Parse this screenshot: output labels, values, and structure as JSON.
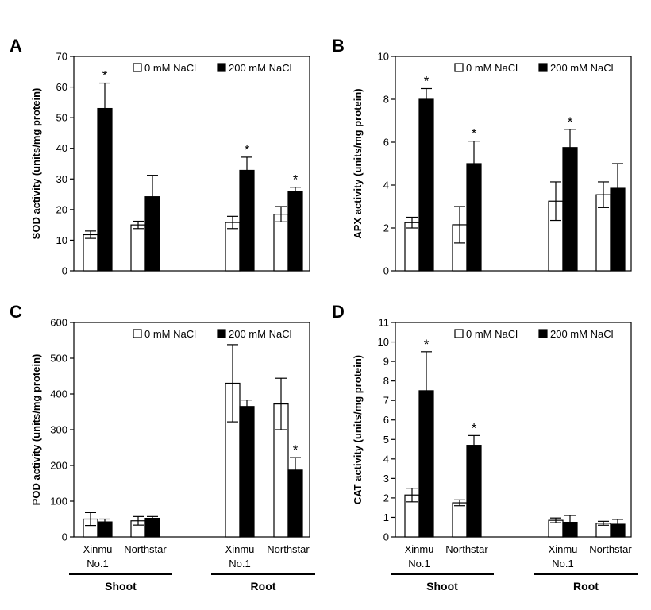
{
  "chart_data": [
    {
      "type": "bar",
      "panel": "A",
      "ylabel": "SOD activity (units/mg protein)",
      "ylim": [
        0,
        70
      ],
      "yticks": [
        "0",
        "10",
        "20",
        "30",
        "40",
        "50",
        "60",
        "70"
      ],
      "categories": [
        "Shoot Xinmu No.1",
        "Shoot Northstar",
        "Root Xinmu No.1",
        "Root Northstar"
      ],
      "series": [
        {
          "name": "0 mM NaCl",
          "color": "#ffffff",
          "values": [
            11.8,
            15.0,
            15.8,
            18.5
          ],
          "errors": [
            1.2,
            1.2,
            2.0,
            2.5
          ]
        },
        {
          "name": "200 mM NaCl",
          "color": "#000000",
          "values": [
            53.0,
            24.2,
            32.8,
            25.8
          ],
          "errors": [
            8.3,
            7.0,
            4.3,
            1.5
          ]
        }
      ],
      "significant": [
        [
          false,
          true
        ],
        [
          false,
          false
        ],
        [
          false,
          true
        ],
        [
          false,
          true
        ]
      ],
      "legend": [
        "0 mM NaCl",
        "200 mM NaCl"
      ],
      "legend_position": "top-right",
      "star": "*"
    },
    {
      "type": "bar",
      "panel": "B",
      "ylabel": "APX activity (units/mg protein)",
      "ylim": [
        0,
        10
      ],
      "yticks": [
        "0",
        "2",
        "4",
        "6",
        "8",
        "10"
      ],
      "categories": [
        "Shoot Xinmu No.1",
        "Shoot Northstar",
        "Root Xinmu No.1",
        "Root Northstar"
      ],
      "series": [
        {
          "name": "0 mM NaCl",
          "color": "#ffffff",
          "values": [
            2.25,
            2.15,
            3.25,
            3.55
          ],
          "errors": [
            0.25,
            0.85,
            0.9,
            0.6
          ]
        },
        {
          "name": "200 mM NaCl",
          "color": "#000000",
          "values": [
            8.0,
            5.0,
            5.75,
            3.85
          ],
          "errors": [
            0.5,
            1.05,
            0.85,
            1.15
          ]
        }
      ],
      "significant": [
        [
          false,
          true
        ],
        [
          false,
          true
        ],
        [
          false,
          true
        ],
        [
          false,
          false
        ]
      ],
      "legend": [
        "0 mM NaCl",
        "200 mM NaCl"
      ],
      "legend_position": "top-right",
      "star": "*"
    },
    {
      "type": "bar",
      "panel": "C",
      "ylabel": "POD activity (units/mg protein)",
      "ylim": [
        0,
        600
      ],
      "yticks": [
        "0",
        "100",
        "200",
        "300",
        "400",
        "500",
        "600"
      ],
      "categories": [
        "Shoot Xinmu No.1",
        "Shoot Northstar",
        "Root Xinmu No.1",
        "Root Northstar"
      ],
      "series": [
        {
          "name": "0 mM NaCl",
          "color": "#ffffff",
          "values": [
            50,
            45,
            430,
            372
          ],
          "errors": [
            18,
            12,
            108,
            72
          ]
        },
        {
          "name": "200 mM NaCl",
          "color": "#000000",
          "values": [
            42,
            52,
            365,
            187
          ],
          "errors": [
            8,
            5,
            18,
            35
          ]
        }
      ],
      "significant": [
        [
          false,
          false
        ],
        [
          false,
          false
        ],
        [
          false,
          false
        ],
        [
          false,
          true
        ]
      ],
      "legend": [
        "0 mM NaCl",
        "200 mM NaCl"
      ],
      "legend_position": "top-right",
      "star": "*"
    },
    {
      "type": "bar",
      "panel": "D",
      "ylabel": "CAT activity (units/mg protein)",
      "ylim": [
        0,
        11
      ],
      "yticks": [
        "0",
        "1",
        "2",
        "3",
        "4",
        "5",
        "6",
        "7",
        "8",
        "9",
        "10",
        "11"
      ],
      "categories": [
        "Shoot Xinmu No.1",
        "Shoot Northstar",
        "Root Xinmu No.1",
        "Root Northstar"
      ],
      "series": [
        {
          "name": "0 mM NaCl",
          "color": "#ffffff",
          "values": [
            2.15,
            1.75,
            0.85,
            0.7
          ],
          "errors": [
            0.35,
            0.15,
            0.12,
            0.1
          ]
        },
        {
          "name": "200 mM NaCl",
          "color": "#000000",
          "values": [
            7.5,
            4.7,
            0.75,
            0.65
          ],
          "errors": [
            2.0,
            0.5,
            0.35,
            0.25
          ]
        }
      ],
      "significant": [
        [
          false,
          true
        ],
        [
          false,
          true
        ],
        [
          false,
          false
        ],
        [
          false,
          false
        ]
      ],
      "legend": [
        "0 mM NaCl",
        "200 mM NaCl"
      ],
      "legend_position": "top-right",
      "star": "*"
    }
  ],
  "category_labels": {
    "xinmu_line1": "Xinmu",
    "xinmu_line2": "No.1",
    "northstar": "Northstar"
  },
  "groups": {
    "shoot": "Shoot",
    "root": "Root"
  }
}
